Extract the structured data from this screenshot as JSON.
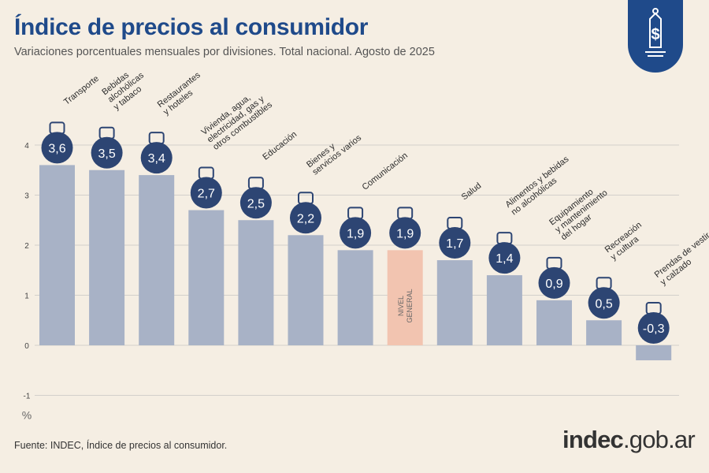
{
  "title": "Índice de precios al consumidor",
  "subtitle": "Variaciones porcentuales mensuales por divisiones. Total nacional. Agosto de 2025",
  "source": "Fuente: INDEC, Índice de precios al consumidor.",
  "logo": {
    "main": "indec",
    "suffix": ".gob.ar"
  },
  "colors": {
    "bar": "#a8b2c6",
    "highlight_bar": "#f2c4b0",
    "bubble": "#2d4573",
    "title": "#1f4a8a",
    "icon_accent": "#e87a3a",
    "grid": "#d2d0cb"
  },
  "chart_data": {
    "type": "bar",
    "title": "Índice de precios al consumidor",
    "subtitle": "Variaciones porcentuales mensuales por divisiones. Total nacional. Agosto de 2025",
    "ylabel": "%",
    "ylim": [
      -1,
      4
    ],
    "yticks": [
      "-1",
      "0",
      "1",
      "2",
      "3",
      "4"
    ],
    "grid": true,
    "categories": [
      [
        "Transporte"
      ],
      [
        "Bebidas",
        "alcohólicas",
        "y tabaco"
      ],
      [
        "Restaurantes",
        "y hoteles"
      ],
      [
        "Vivienda, agua,",
        "electricidad, gas y",
        "otros combustibles"
      ],
      [
        "Educación"
      ],
      [
        "Bienes y",
        "servicios varios"
      ],
      [
        "Comunicación"
      ],
      [
        "NIVEL",
        "GENERAL"
      ],
      [
        "Salud"
      ],
      [
        "Alimentos y bebidas",
        "no alcohólicas"
      ],
      [
        "Equipamiento",
        "y mantenimiento",
        "del hogar"
      ],
      [
        "Recreación",
        "y cultura"
      ],
      [
        "Prendas de vestir",
        "y calzado"
      ]
    ],
    "values": [
      3.6,
      3.5,
      3.4,
      2.7,
      2.5,
      2.2,
      1.9,
      1.9,
      1.7,
      1.4,
      0.9,
      0.5,
      -0.3
    ],
    "value_labels": [
      "3,6",
      "3,5",
      "3,4",
      "2,7",
      "2,5",
      "2,2",
      "1,9",
      "1,9",
      "1,7",
      "1,4",
      "0,9",
      "0,5",
      "-0,3"
    ],
    "highlight_index": 7,
    "icons": [
      "bus-card-icon",
      "bottle-glass-icon",
      "plate-cutlery-icon",
      "lightbulb-icon",
      "notebook-icon",
      "comb-scissors-icon",
      "smartphone-icon",
      "basket-icon",
      "first-aid-icon",
      "chicken-food-icon",
      "air-conditioner-icon",
      "beach-umbrella-icon",
      "tshirt-icon"
    ]
  }
}
